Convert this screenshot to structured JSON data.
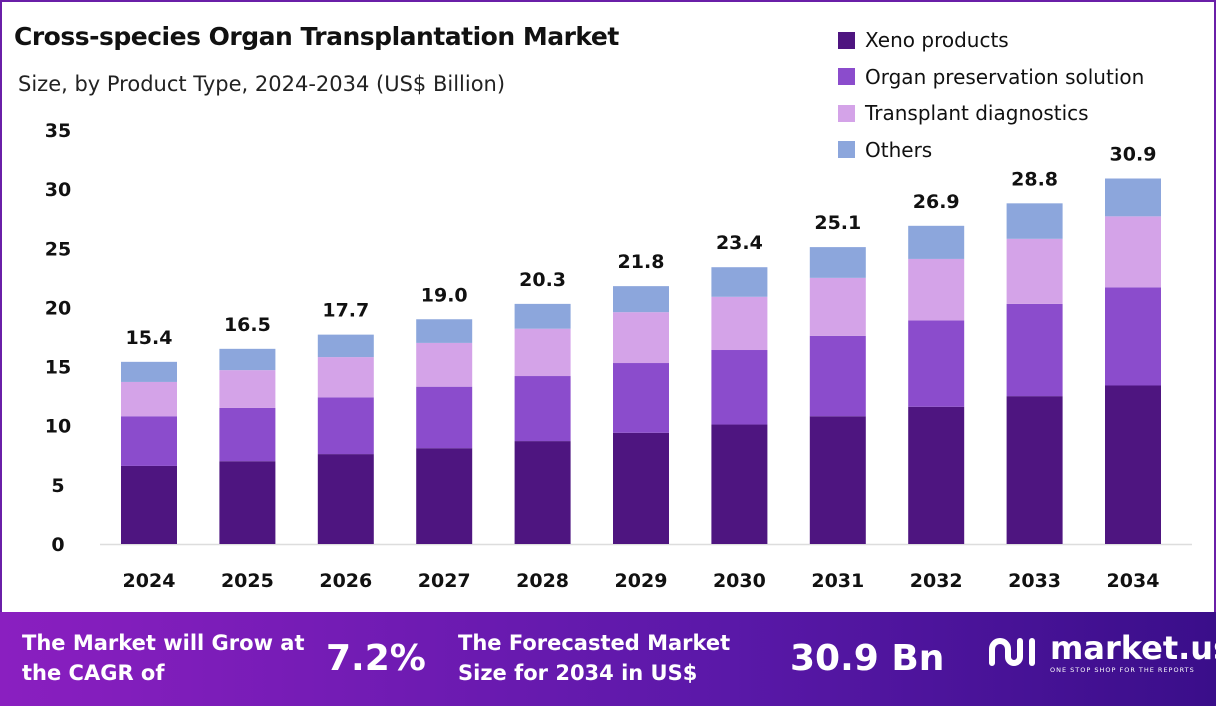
{
  "chart_data": {
    "type": "bar",
    "stacked": true,
    "title": "Cross-species Organ Transplantation Market",
    "subtitle": "Size, by Product Type, 2024-2034 (US$ Billion)",
    "xlabel": "",
    "ylabel": "",
    "ylim": [
      0,
      35
    ],
    "yticks": [
      0,
      5,
      10,
      15,
      20,
      25,
      30,
      35
    ],
    "grid": false,
    "legend_position": "top-right",
    "categories": [
      "2024",
      "2025",
      "2026",
      "2027",
      "2028",
      "2029",
      "2030",
      "2031",
      "2032",
      "2033",
      "2034"
    ],
    "series": [
      {
        "name": "Xeno products",
        "color": "#4e1580",
        "values": [
          6.6,
          7.0,
          7.6,
          8.1,
          8.7,
          9.4,
          10.1,
          10.8,
          11.6,
          12.5,
          13.4
        ]
      },
      {
        "name": "Organ preservation solution",
        "color": "#8b4ccc",
        "values": [
          4.2,
          4.5,
          4.8,
          5.2,
          5.5,
          5.9,
          6.3,
          6.8,
          7.3,
          7.8,
          8.3
        ]
      },
      {
        "name": "Transplant diagnostics",
        "color": "#d4a3e8",
        "values": [
          2.9,
          3.2,
          3.4,
          3.7,
          4.0,
          4.3,
          4.5,
          4.9,
          5.2,
          5.5,
          6.0
        ]
      },
      {
        "name": "Others",
        "color": "#8ca6dc",
        "values": [
          1.7,
          1.8,
          1.9,
          2.0,
          2.1,
          2.2,
          2.5,
          2.6,
          2.8,
          3.0,
          3.2
        ]
      }
    ],
    "totals": [
      "15.4",
      "16.5",
      "17.7",
      "19.0",
      "20.3",
      "21.8",
      "23.4",
      "25.1",
      "26.9",
      "28.8",
      "30.9"
    ]
  },
  "footer": {
    "cagr_label": "The Market will Grow at the CAGR of",
    "cagr_value": "7.2%",
    "forecast_label": "The Forecasted Market Size for 2034 in US$",
    "forecast_value": "30.9 Bn",
    "logo_text": "market.us",
    "logo_tagline": "ONE STOP SHOP FOR THE REPORTS"
  }
}
